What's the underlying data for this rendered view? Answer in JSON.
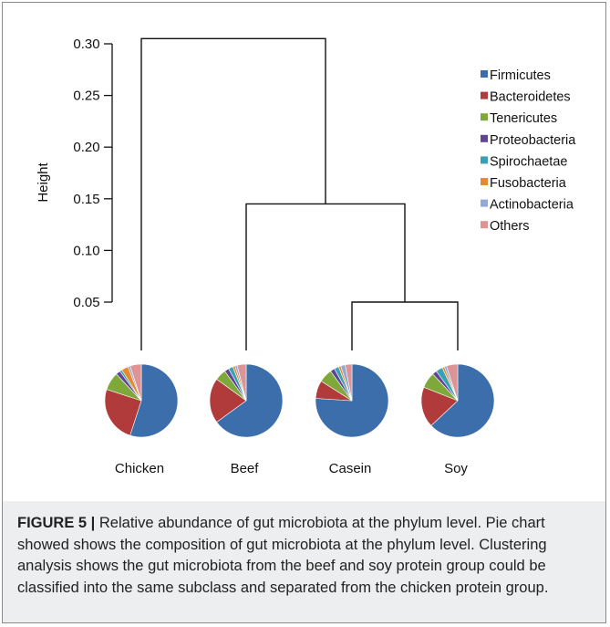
{
  "colors": {
    "Firmicutes": "#3b6eaa",
    "Bacteroidetes": "#b13b3b",
    "Tenericutes": "#7ea93a",
    "Proteobacteria": "#5f4592",
    "Spirochaetae": "#3aa0b3",
    "Fusobacteria": "#e88a2c",
    "Actinobacteria": "#93a9d3",
    "Others": "#dc9496"
  },
  "chart_data": {
    "type": "dendrogram",
    "ylabel": "Height",
    "ylim": [
      0.0,
      0.31
    ],
    "yticks": [
      "0.30",
      "0.25",
      "0.20",
      "0.15",
      "0.10",
      "0.05"
    ],
    "ytick_values": [
      0.3,
      0.25,
      0.2,
      0.15,
      0.1,
      0.05
    ],
    "leaves": [
      "Chicken",
      "Beef",
      "Casein",
      "Soy"
    ],
    "merges": [
      {
        "children": [
          "Casein",
          "Soy"
        ],
        "height": 0.05
      },
      {
        "children": [
          "Beef",
          "Casein+Soy"
        ],
        "height": 0.145
      },
      {
        "children": [
          "Chicken",
          "Beef+Casein+Soy"
        ],
        "height": 0.305
      }
    ],
    "legend": {
      "position": "top-right",
      "entries": [
        "Firmicutes",
        "Bacteroidetes",
        "Tenericutes",
        "Proteobacteria",
        "Spirochaetae",
        "Fusobacteria",
        "Actinobacteria",
        "Others"
      ]
    },
    "pies": [
      {
        "group": "Chicken",
        "values": [
          0.55,
          0.25,
          0.08,
          0.02,
          0.01,
          0.03,
          0.01,
          0.05
        ]
      },
      {
        "group": "Beef",
        "values": [
          0.65,
          0.2,
          0.05,
          0.02,
          0.02,
          0.01,
          0.01,
          0.04
        ]
      },
      {
        "group": "Casein",
        "values": [
          0.76,
          0.08,
          0.06,
          0.02,
          0.02,
          0.01,
          0.02,
          0.03
        ]
      },
      {
        "group": "Soy",
        "values": [
          0.63,
          0.18,
          0.07,
          0.02,
          0.03,
          0.01,
          0.01,
          0.05
        ]
      }
    ]
  },
  "caption": {
    "label": "FIGURE 5 |",
    "text": " Relative abundance of gut microbiota at the phylum level. Pie chart showed shows the composition of gut microbiota at the phylum level. Clustering analysis shows the gut microbiota from the beef and soy protein group could be classified into the same subclass and separated from the chicken protein group."
  }
}
